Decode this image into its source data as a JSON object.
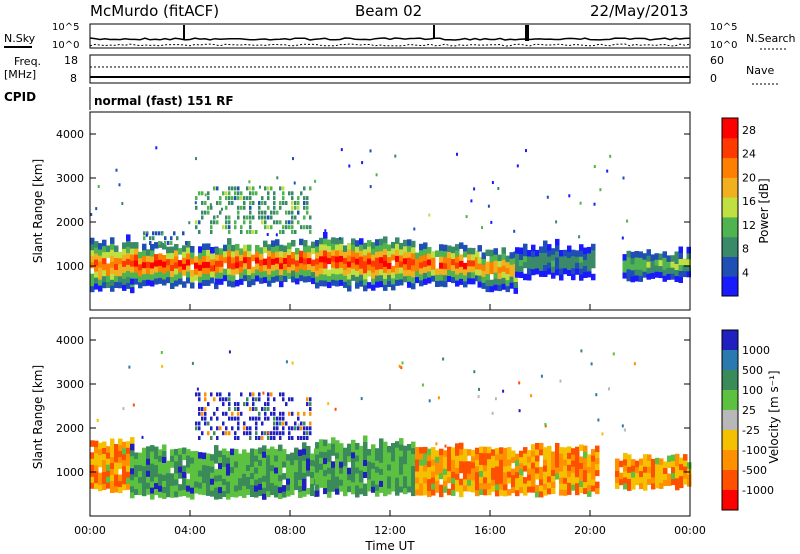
{
  "header": {
    "station": "McMurdo (fitACF)",
    "beam": "Beam 02",
    "date": "22/May/2013"
  },
  "mini_panels": {
    "nsky_label": "N.Sky",
    "nsearch_label": "N.Search",
    "noise_ticks_left": [
      "10^5",
      "10^0"
    ],
    "noise_ticks_right": [
      "10^5",
      "10^0"
    ],
    "freq_label_1": "Freq.",
    "freq_label_2": "[MHz]",
    "freq_ticks": [
      "18",
      "8"
    ],
    "nave_label": "Nave",
    "nave_ticks": [
      "60",
      "0"
    ],
    "cpid_label": "CPID",
    "cpid_text": "normal (fast) 151 RF"
  },
  "colors": {
    "power_scale": [
      "#1a1aff",
      "#1f4fb5",
      "#3a8a6a",
      "#4fb34f",
      "#bfe040",
      "#f0b020",
      "#ff8000",
      "#ff3a00",
      "#ff0000"
    ],
    "velocity_scale": [
      "#2020c0",
      "#2a7ab0",
      "#3b8a5a",
      "#5cc040",
      "#b8b8b8",
      "#f5c000",
      "#ff9000",
      "#ff5000",
      "#ff0000"
    ]
  },
  "chart_data": [
    {
      "type": "heatmap",
      "panel": "power",
      "xlabel": "",
      "ylabel": "Slant Range [km]",
      "ylim": [
        0,
        4500
      ],
      "yticks": [
        "1000",
        "2000",
        "3000",
        "4000"
      ],
      "colorbar_label": "Power [dB]",
      "colorbar_ticks": [
        "4",
        "8",
        "12",
        "16",
        "20",
        "24",
        "28"
      ],
      "colorbar_range": [
        0,
        30
      ],
      "bands": [
        {
          "t0": 0.0,
          "t1": 1.6,
          "r0": 450,
          "r1": 1500,
          "core": 24
        },
        {
          "t0": 1.6,
          "t1": 5.0,
          "r0": 550,
          "r1": 1400,
          "core": 28
        },
        {
          "t0": 5.0,
          "t1": 9.0,
          "r0": 600,
          "r1": 1450,
          "core": 28
        },
        {
          "t0": 9.0,
          "t1": 13.0,
          "r0": 500,
          "r1": 1550,
          "core": 28
        },
        {
          "t0": 13.0,
          "t1": 15.5,
          "r0": 600,
          "r1": 1350,
          "core": 26
        },
        {
          "t0": 15.5,
          "t1": 17.0,
          "r0": 450,
          "r1": 1300,
          "core": 22
        },
        {
          "t0": 17.0,
          "t1": 20.2,
          "r0": 750,
          "r1": 1400,
          "core": 10
        },
        {
          "t0": 21.3,
          "t1": 24.0,
          "r0": 700,
          "r1": 1250,
          "core": 14
        }
      ],
      "patches": [
        {
          "t0": 4.2,
          "t1": 8.8,
          "r0": 1750,
          "r1": 2750,
          "level": 10
        },
        {
          "t0": 2.0,
          "t1": 4.0,
          "r0": 1500,
          "r1": 1800,
          "level": 8
        }
      ]
    },
    {
      "type": "heatmap",
      "panel": "velocity",
      "xlabel": "Time UT",
      "ylabel": "Slant Range [km]",
      "ylim": [
        0,
        4500
      ],
      "yticks": [
        "1000",
        "2000",
        "3000",
        "4000"
      ],
      "xticks": [
        "00:00",
        "04:00",
        "08:00",
        "12:00",
        "16:00",
        "20:00",
        "00:00"
      ],
      "xlim": [
        0,
        24
      ],
      "colorbar_label": "Velocity [m s⁻¹]",
      "colorbar_ticks": [
        "1000",
        "500",
        "100",
        "25",
        "-25",
        "-100",
        "-500",
        "-1000"
      ],
      "bands": [
        {
          "t0": 0.0,
          "t1": 1.6,
          "r0": 600,
          "r1": 1600,
          "level": "orange"
        },
        {
          "t0": 1.6,
          "t1": 9.0,
          "r0": 450,
          "r1": 1450,
          "level": "green"
        },
        {
          "t0": 9.0,
          "t1": 13.0,
          "r0": 500,
          "r1": 1600,
          "level": "green"
        },
        {
          "t0": 13.0,
          "t1": 20.3,
          "r0": 500,
          "r1": 1500,
          "level": "orange"
        },
        {
          "t0": 21.0,
          "t1": 24.0,
          "r0": 650,
          "r1": 1250,
          "level": "orange"
        }
      ],
      "patches": [
        {
          "t0": 4.2,
          "t1": 8.8,
          "r0": 1750,
          "r1": 2750,
          "level": "blue"
        }
      ]
    }
  ]
}
